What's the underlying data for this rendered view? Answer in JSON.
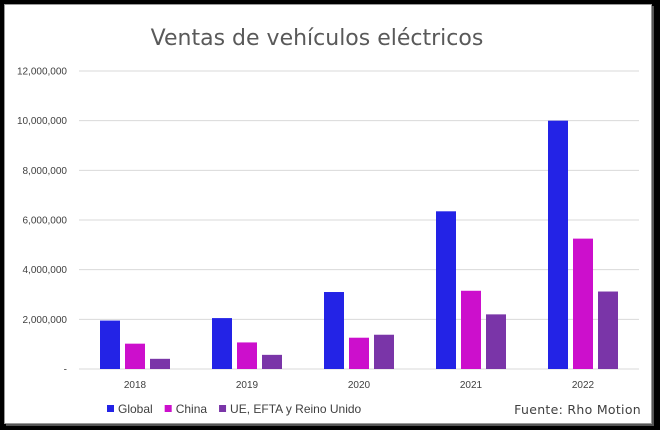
{
  "chart_data": {
    "type": "bar",
    "title": "Ventas de vehículos eléctricos",
    "xlabel": "",
    "ylabel": "",
    "categories": [
      "2018",
      "2019",
      "2020",
      "2021",
      "2022"
    ],
    "series": [
      {
        "name": "Global",
        "color": "#2323e6",
        "values": [
          1950000,
          2050000,
          3100000,
          6350000,
          10000000
        ]
      },
      {
        "name": "China",
        "color": "#cc0fcc",
        "values": [
          1020000,
          1070000,
          1260000,
          3150000,
          5250000
        ]
      },
      {
        "name": "UE, EFTA y Reino Unido",
        "color": "#7a35a8",
        "values": [
          410000,
          570000,
          1380000,
          2200000,
          3120000
        ]
      }
    ],
    "ylim": [
      0,
      12000000
    ],
    "yticks": [
      0,
      2000000,
      4000000,
      6000000,
      8000000,
      10000000,
      12000000
    ],
    "ytick_labels": [
      "-",
      "2,000,000",
      "4,000,000",
      "6,000,000",
      "8,000,000",
      "10,000,000",
      "12,000,000"
    ],
    "grid": true,
    "legend_position": "bottom-left"
  },
  "source_text": "Fuente: Rho Motion"
}
